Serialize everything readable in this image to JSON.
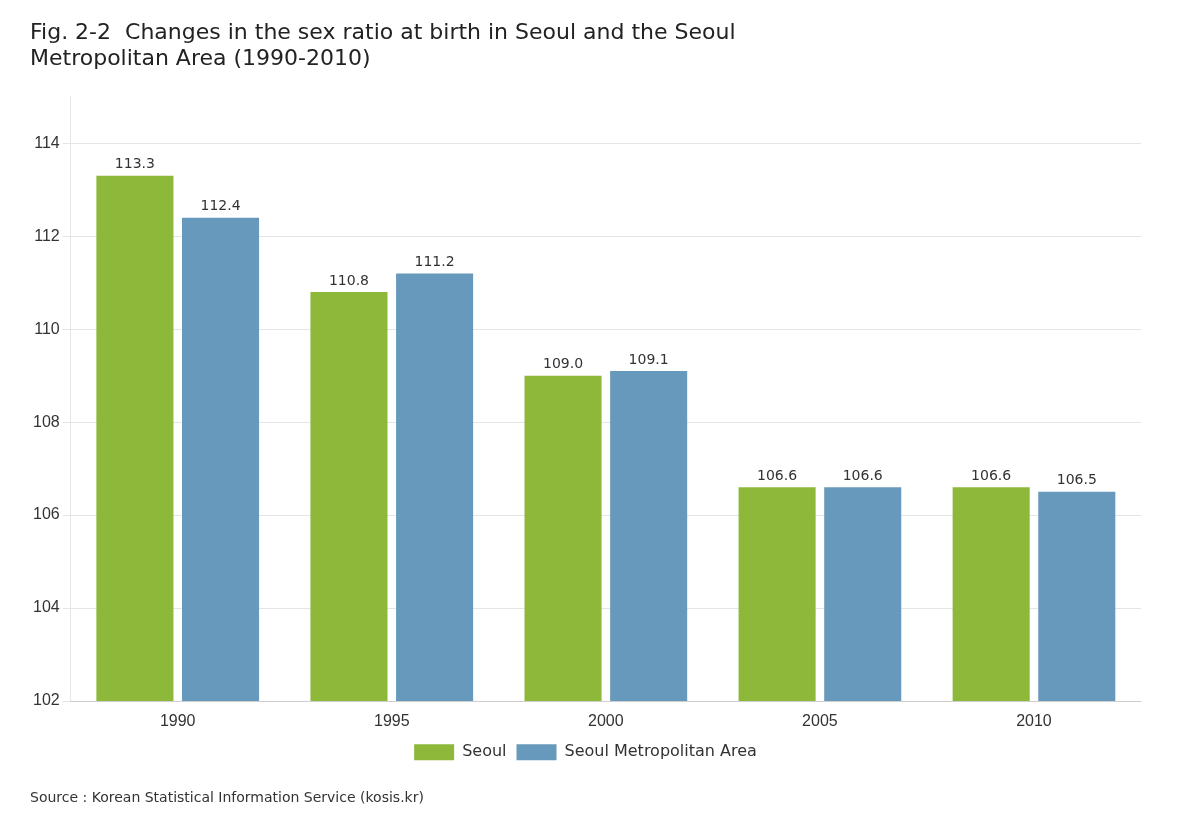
{
  "chart_data": {
    "type": "bar",
    "title": [
      "Fig. 2-2  Changes in the sex ratio at birth in Seoul and the Seoul",
      "Metropolitan Area (1990-2010)"
    ],
    "categories": [
      "1990",
      "1995",
      "2000",
      "2005",
      "2010"
    ],
    "series": [
      {
        "name": "Seoul",
        "color": "#8db83a",
        "values": [
          113.3,
          110.8,
          109.0,
          106.6,
          106.6
        ],
        "value_labels": [
          "113.3",
          "110.8",
          "109.0",
          "106.6",
          "106.6"
        ]
      },
      {
        "name": "Seoul Metropolitan Area",
        "color": "#6699bb",
        "values": [
          112.4,
          111.2,
          109.1,
          106.6,
          106.5
        ]
      }
    ],
    "ylim": [
      102,
      115
    ],
    "yticks": [
      102,
      104,
      106,
      108,
      110,
      112,
      114
    ],
    "grid": true,
    "legend": "bottom",
    "data_labels": true,
    "annotations": [
      "Source : Korean Statistical Information Service (kosis.kr)"
    ]
  }
}
